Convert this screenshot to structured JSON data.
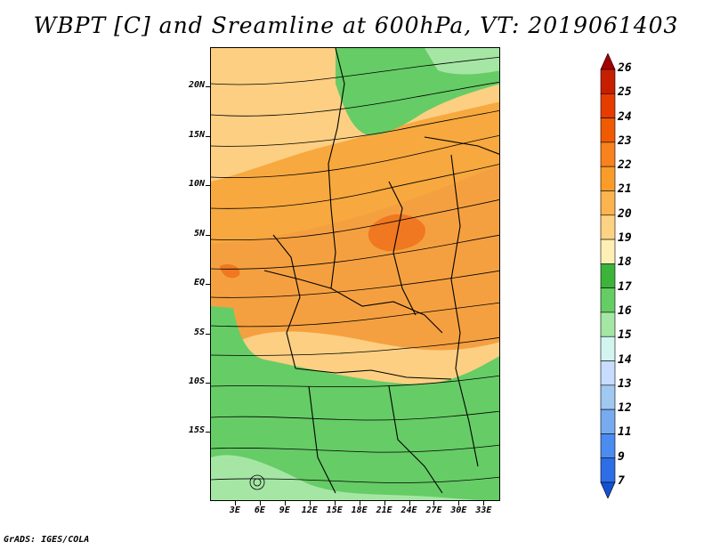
{
  "title": "WBPT [C] and Sreamline at 600hPa, VT: 2019061403",
  "footer": "GrADS: IGES/COLA",
  "map": {
    "lon_range": [
      0,
      35
    ],
    "lat_range": [
      -22,
      24
    ],
    "y_ticks": [
      {
        "lat": 20,
        "label": "20N"
      },
      {
        "lat": 15,
        "label": "15N"
      },
      {
        "lat": 10,
        "label": "10N"
      },
      {
        "lat": 5,
        "label": "5N"
      },
      {
        "lat": 0,
        "label": "EQ"
      },
      {
        "lat": -5,
        "label": "5S"
      },
      {
        "lat": -10,
        "label": "10S"
      },
      {
        "lat": -15,
        "label": "15S"
      }
    ],
    "x_ticks": [
      {
        "lon": 3,
        "label": "3E"
      },
      {
        "lon": 6,
        "label": "6E"
      },
      {
        "lon": 9,
        "label": "9E"
      },
      {
        "lon": 12,
        "label": "12E"
      },
      {
        "lon": 15,
        "label": "15E"
      },
      {
        "lon": 18,
        "label": "18E"
      },
      {
        "lon": 21,
        "label": "21E"
      },
      {
        "lon": 24,
        "label": "24E"
      },
      {
        "lon": 27,
        "label": "27E"
      },
      {
        "lon": 30,
        "label": "30E"
      },
      {
        "lon": 33,
        "label": "33E"
      }
    ]
  },
  "colorbar": {
    "labels": [
      "26",
      "25",
      "24",
      "23",
      "22",
      "21",
      "20",
      "19",
      "18",
      "17",
      "16",
      "15",
      "14",
      "13",
      "12",
      "11",
      "9",
      "7"
    ],
    "colors": [
      "#a50000",
      "#c81e00",
      "#e63c00",
      "#f05a00",
      "#f7821e",
      "#fa9c28",
      "#fcb450",
      "#fdd282",
      "#fef0b4",
      "#3cb43c",
      "#64cd64",
      "#a5e6a5",
      "#d2f5f0",
      "#c8dcff",
      "#a0c8f0",
      "#78aaf0",
      "#4b8cf0",
      "#2d6ee6",
      "#1450d2"
    ]
  }
}
